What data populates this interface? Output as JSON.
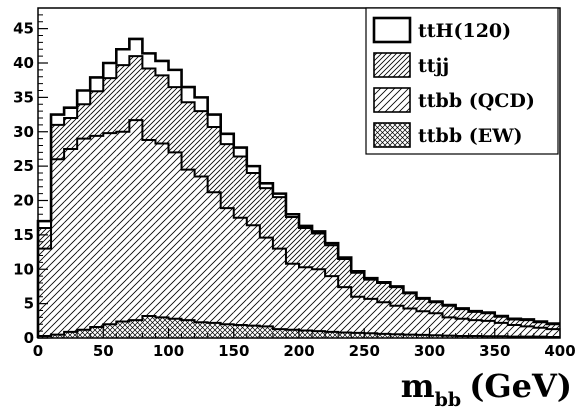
{
  "chart_data": {
    "type": "histogram",
    "stacked": true,
    "x_bin_width": 10,
    "x": [
      5,
      15,
      25,
      35,
      45,
      55,
      65,
      75,
      85,
      95,
      105,
      115,
      125,
      135,
      145,
      155,
      165,
      175,
      185,
      195,
      205,
      215,
      225,
      235,
      245,
      255,
      265,
      275,
      285,
      295,
      305,
      315,
      325,
      335,
      345,
      355,
      365,
      375,
      385,
      395
    ],
    "xlim": [
      0,
      400
    ],
    "ylim": [
      0,
      48
    ],
    "x_ticks": [
      0,
      50,
      100,
      150,
      200,
      250,
      300,
      350,
      400
    ],
    "y_ticks": [
      0,
      5,
      10,
      15,
      20,
      25,
      30,
      35,
      40,
      45
    ],
    "xlabel": "m",
    "xlabel_subscript": "bb",
    "xlabel_unit": "(GeV)",
    "legend_position": "top-right",
    "series": [
      {
        "name": "ttbb (EW)",
        "pattern": "crosshatch",
        "values": [
          0.3,
          0.5,
          0.9,
          1.2,
          1.6,
          2.0,
          2.4,
          2.6,
          3.2,
          3.0,
          2.8,
          2.6,
          2.3,
          2.2,
          2.0,
          1.9,
          1.8,
          1.7,
          1.3,
          1.2,
          1.1,
          1.0,
          0.9,
          0.8,
          0.75,
          0.7,
          0.6,
          0.55,
          0.5,
          0.45,
          0.4,
          0.35,
          0.3,
          0.3,
          0.25,
          0.25,
          0.2,
          0.2,
          0.2,
          0.15
        ]
      },
      {
        "name": "ttbb (QCD)",
        "pattern": "diagonal-wide",
        "values": [
          12.7,
          25.5,
          26.6,
          27.8,
          27.8,
          27.8,
          27.6,
          29.1,
          25.6,
          25.3,
          24.2,
          21.9,
          21.2,
          19.0,
          16.9,
          15.6,
          14.6,
          12.9,
          11.7,
          9.6,
          9.2,
          9.0,
          8.1,
          6.6,
          5.25,
          5.0,
          4.6,
          4.15,
          3.8,
          3.45,
          3.2,
          2.65,
          2.5,
          2.3,
          2.25,
          1.95,
          1.7,
          1.5,
          1.3,
          1.15
        ]
      },
      {
        "name": "ttjj",
        "pattern": "diagonal-dense",
        "values": [
          3.0,
          5.0,
          4.5,
          5.0,
          6.5,
          8.0,
          9.7,
          9.3,
          10.4,
          9.9,
          9.5,
          9.8,
          9.5,
          9.5,
          9.3,
          8.9,
          7.6,
          7.2,
          7.5,
          6.8,
          5.7,
          5.2,
          4.5,
          4.1,
          3.5,
          2.8,
          2.8,
          2.7,
          2.2,
          1.8,
          1.6,
          1.7,
          1.4,
          1.2,
          1.1,
          0.9,
          0.8,
          0.9,
          0.8,
          0.7
        ]
      },
      {
        "name": "ttH(120)",
        "pattern": "none",
        "values": [
          1.0,
          1.5,
          1.5,
          2.0,
          2.0,
          2.2,
          2.3,
          2.5,
          2.2,
          2.1,
          2.5,
          2.2,
          2.0,
          1.8,
          1.5,
          1.3,
          1.0,
          0.7,
          0.5,
          0.4,
          0.3,
          0.3,
          0.3,
          0.2,
          0.2,
          0.2,
          0.1,
          0.1,
          0.1,
          0.1,
          0.1,
          0.1,
          0.1,
          0.1,
          0.1,
          0.1,
          0.1,
          0.1,
          0.1,
          0.1
        ]
      }
    ],
    "legend_order": [
      "ttH(120)",
      "ttjj",
      "ttbb (QCD)",
      "ttbb (EW)"
    ]
  }
}
